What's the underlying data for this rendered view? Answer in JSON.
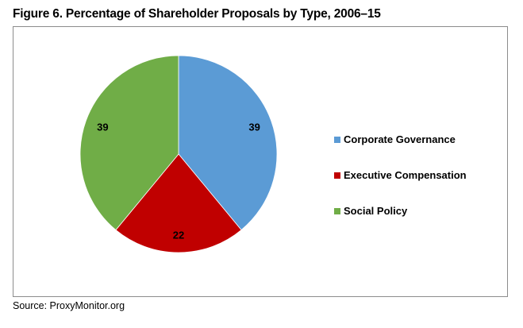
{
  "figure": {
    "title": "Figure 6. Percentage of Shareholder Proposals by Type, 2006–15",
    "source": "Source: ProxyMonitor.org"
  },
  "chart_data": {
    "type": "pie",
    "title": "Figure 6. Percentage of Shareholder Proposals by Type, 2006–15",
    "categories": [
      "Corporate Governance",
      "Executive Compensation",
      "Social Policy"
    ],
    "values": [
      39,
      22,
      39
    ],
    "colors": [
      "#5b9bd5",
      "#c00000",
      "#70ad47"
    ],
    "data_labels": [
      "39",
      "22",
      "39"
    ],
    "start_angle": "12 o'clock",
    "direction": "clockwise",
    "legend": {
      "position": "right",
      "entries": [
        "Corporate Governance",
        "Executive Compensation",
        "Social Policy"
      ]
    }
  }
}
